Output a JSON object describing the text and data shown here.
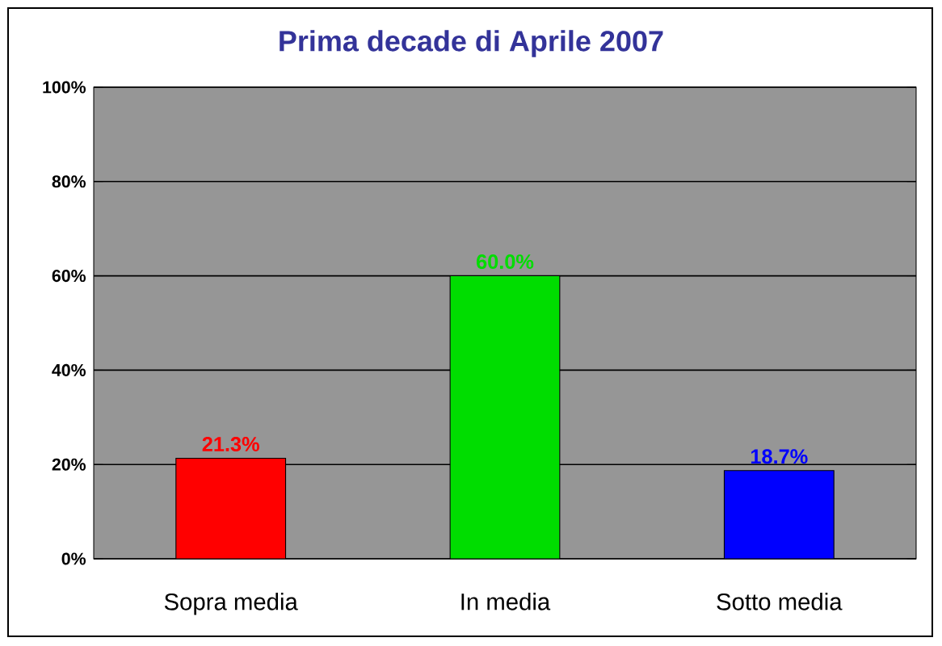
{
  "chart_data": {
    "type": "bar",
    "title": "Prima decade di Aprile 2007",
    "categories": [
      "Sopra media",
      "In media",
      "Sotto media"
    ],
    "values": [
      21.3,
      60.0,
      18.7
    ],
    "colors": [
      "#ff0000",
      "#00dd00",
      "#0000ff"
    ],
    "value_labels": [
      "21.3%",
      "60.0%",
      "18.7%"
    ],
    "ylim": [
      0,
      100
    ],
    "yticks": [
      {
        "value": 0,
        "label": "0%"
      },
      {
        "value": 20,
        "label": "20%"
      },
      {
        "value": 40,
        "label": "40%"
      },
      {
        "value": 60,
        "label": "60%"
      },
      {
        "value": 80,
        "label": "80%"
      },
      {
        "value": 100,
        "label": "100%"
      }
    ],
    "grid": "y"
  }
}
